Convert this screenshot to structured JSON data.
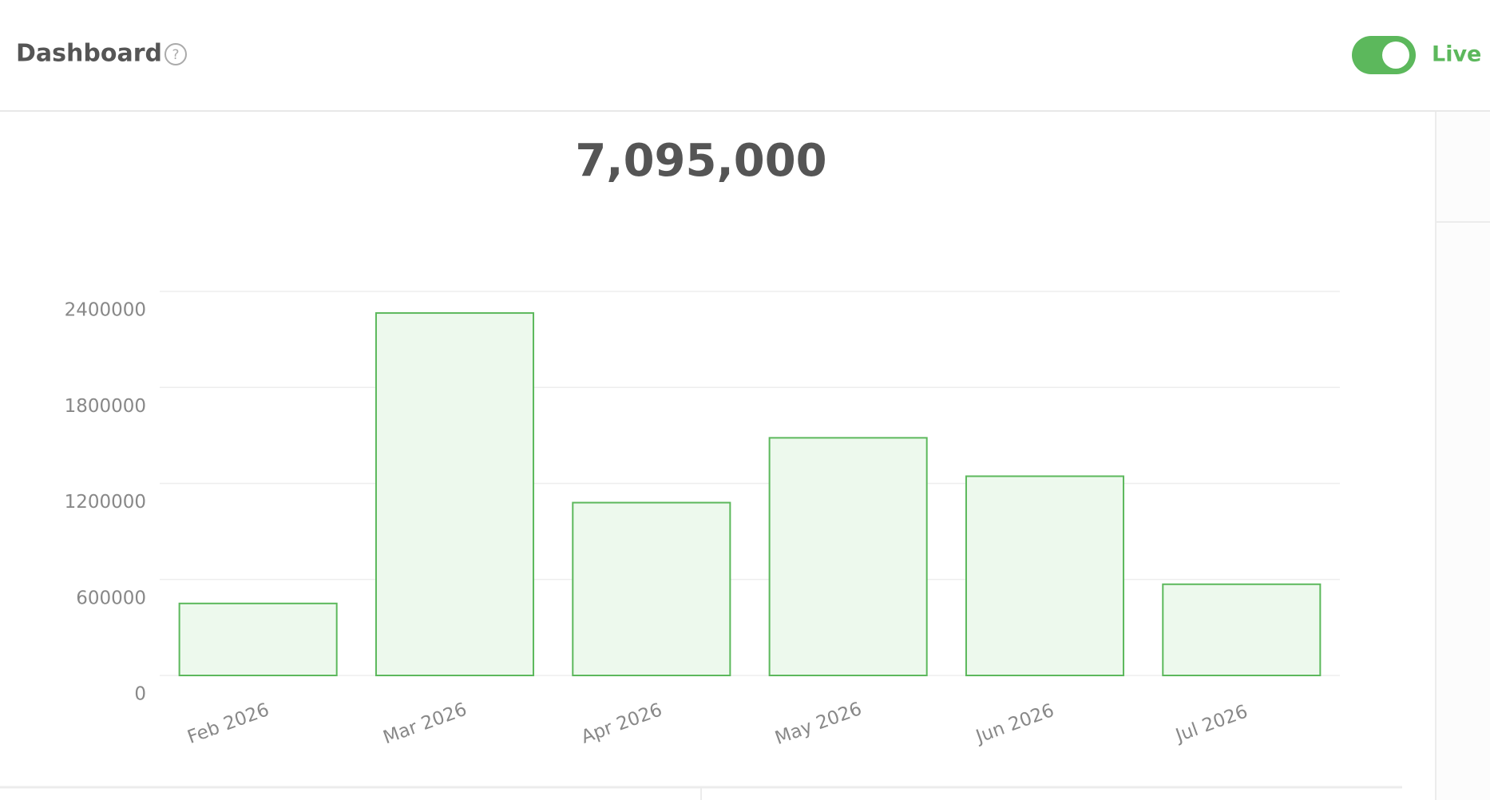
{
  "header": {
    "title": "Dashboard",
    "toggle_label": "Live"
  },
  "total": "7,095,000",
  "chart_data": {
    "type": "bar",
    "categories": [
      "Feb 2026",
      "Mar 2026",
      "Apr 2026",
      "May 2026",
      "Jun 2026",
      "Jul 2026"
    ],
    "values": [
      450000,
      2265000,
      1080000,
      1485000,
      1245000,
      570000
    ],
    "color": "#5cb85c",
    "fill": "#edf9ed",
    "ylim": [
      0,
      2400000
    ],
    "yticks": [
      0,
      600000,
      1200000,
      1800000,
      2400000
    ],
    "grid": true
  }
}
